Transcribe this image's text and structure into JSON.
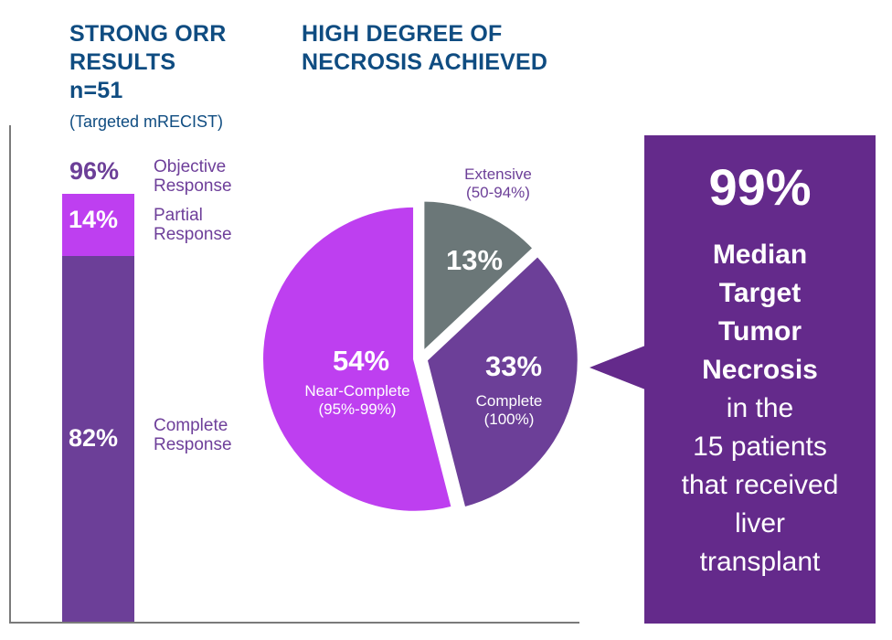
{
  "left_panel": {
    "heading_line1": "STRONG ORR",
    "heading_line2": "RESULTS",
    "heading_line3": "n=51",
    "subheading": "(Targeted mRECIST)"
  },
  "right_panel": {
    "heading_line1": "HIGH DEGREE OF",
    "heading_line2": "NECROSIS ACHIEVED"
  },
  "callout": {
    "value": "99%",
    "line1": "Median",
    "line2": "Target",
    "line3": "Tumor",
    "line4": "Necrosis",
    "line5": "in the",
    "line6": "15 patients",
    "line7": "that received",
    "line8": "liver",
    "line9": "transplant"
  },
  "colors": {
    "heading": "#0f4c81",
    "purple_dark": "#6c3f98",
    "magenta": "#be3ff0",
    "gray": "#6b7778",
    "callout_bg": "#642a8b"
  },
  "chart_data": [
    {
      "type": "bar",
      "title": "STRONG ORR RESULTS n=51",
      "subtitle": "(Targeted mRECIST)",
      "total": {
        "label_line1": "Objective",
        "label_line2": "Response",
        "value": 96,
        "display": "96%"
      },
      "series": [
        {
          "name": "Complete Response",
          "label_line1": "Complete",
          "label_line2": "Response",
          "value": 82,
          "display": "82%",
          "color": "#6c3f98"
        },
        {
          "name": "Partial Response",
          "label_line1": "Partial",
          "label_line2": "Response",
          "value": 14,
          "display": "14%",
          "color": "#be3ff0"
        }
      ],
      "ylim": [
        0,
        96
      ]
    },
    {
      "type": "pie",
      "title": "HIGH DEGREE OF NECROSIS ACHIEVED",
      "slices": [
        {
          "name": "Extensive (50-94%)",
          "label_line1": "Extensive",
          "label_line2": "(50-94%)",
          "value": 13,
          "display": "13%",
          "color": "#6b7778"
        },
        {
          "name": "Complete (100%)",
          "label_line1": "Complete",
          "label_line2": "(100%)",
          "value": 33,
          "display": "33%",
          "color": "#6c3f98"
        },
        {
          "name": "Near-Complete (95%-99%)",
          "label_line1": "Near-Complete",
          "label_line2": "(95%-99%)",
          "value": 54,
          "display": "54%",
          "color": "#be3ff0"
        }
      ]
    }
  ]
}
